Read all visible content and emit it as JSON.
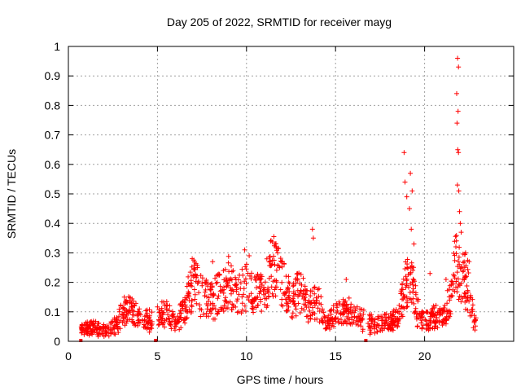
{
  "chart_data": {
    "type": "scatter",
    "title": "Day 205 of 2022, SRMTID for receiver mayg",
    "xlabel": "GPS time / hours",
    "ylabel": "SRMTID / TECUs",
    "xlim": [
      0,
      25
    ],
    "ylim": [
      0,
      1
    ],
    "x_ticks": [
      "0",
      "5",
      "10",
      "15",
      "20"
    ],
    "x_tick_values": [
      0,
      5,
      10,
      15,
      20
    ],
    "y_ticks": [
      "0",
      "0.1",
      "0.2",
      "0.3",
      "0.4",
      "0.5",
      "0.6",
      "0.7",
      "0.8",
      "0.9",
      "1"
    ],
    "y_tick_values": [
      0,
      0.1,
      0.2,
      0.3,
      0.4,
      0.5,
      0.6,
      0.7,
      0.8,
      0.9,
      1.0
    ],
    "grid": true,
    "marker": "+",
    "colors": {
      "series": "#ff0000",
      "grid": "#a0a0a0",
      "axis": "#000000"
    },
    "series": [
      {
        "name": "SRMTID",
        "profile": [
          [
            0.7,
            0.045
          ],
          [
            1.0,
            0.04
          ],
          [
            1.5,
            0.045
          ],
          [
            2.0,
            0.04
          ],
          [
            2.5,
            0.05
          ],
          [
            2.8,
            0.06
          ],
          [
            3.0,
            0.1
          ],
          [
            3.5,
            0.11
          ],
          [
            4.0,
            0.08
          ],
          [
            4.5,
            0.07
          ],
          [
            5.0,
            0.08
          ],
          [
            5.5,
            0.1
          ],
          [
            6.0,
            0.06
          ],
          [
            6.5,
            0.1
          ],
          [
            7.0,
            0.2
          ],
          [
            7.5,
            0.15
          ],
          [
            8.0,
            0.14
          ],
          [
            8.5,
            0.17
          ],
          [
            9.0,
            0.2
          ],
          [
            9.5,
            0.16
          ],
          [
            10.0,
            0.19
          ],
          [
            10.5,
            0.15
          ],
          [
            11.0,
            0.17
          ],
          [
            11.5,
            0.25
          ],
          [
            12.0,
            0.2
          ],
          [
            12.5,
            0.13
          ],
          [
            13.0,
            0.17
          ],
          [
            13.5,
            0.12
          ],
          [
            14.0,
            0.13
          ],
          [
            14.5,
            0.06
          ],
          [
            15.0,
            0.09
          ],
          [
            15.5,
            0.1
          ],
          [
            16.0,
            0.1
          ],
          [
            16.5,
            0.07
          ],
          [
            17.0,
            0.06
          ],
          [
            17.5,
            0.06
          ],
          [
            18.0,
            0.06
          ],
          [
            18.5,
            0.08
          ],
          [
            18.9,
            0.18
          ],
          [
            19.2,
            0.25
          ],
          [
            19.6,
            0.1
          ],
          [
            20.0,
            0.07
          ],
          [
            20.5,
            0.08
          ],
          [
            21.0,
            0.08
          ],
          [
            21.5,
            0.15
          ],
          [
            21.8,
            0.3
          ],
          [
            22.0,
            0.22
          ],
          [
            22.4,
            0.2
          ],
          [
            22.8,
            0.06
          ]
        ],
        "gaps": [
          [
            4.7,
            5.0
          ],
          [
            16.6,
            16.8
          ]
        ],
        "spikes": [
          [
            2.95,
            0.12
          ],
          [
            3.3,
            0.13
          ],
          [
            6.95,
            0.28
          ],
          [
            7.25,
            0.25
          ],
          [
            8.1,
            0.27
          ],
          [
            8.7,
            0.24
          ],
          [
            9.9,
            0.31
          ],
          [
            10.15,
            0.29
          ],
          [
            11.35,
            0.34
          ],
          [
            11.75,
            0.3
          ],
          [
            12.85,
            0.23
          ],
          [
            13.7,
            0.38
          ],
          [
            13.75,
            0.35
          ],
          [
            15.6,
            0.21
          ],
          [
            18.85,
            0.64
          ],
          [
            18.9,
            0.54
          ],
          [
            19.0,
            0.49
          ],
          [
            19.2,
            0.57
          ],
          [
            19.3,
            0.51
          ],
          [
            19.15,
            0.45
          ],
          [
            19.25,
            0.38
          ],
          [
            19.4,
            0.33
          ],
          [
            20.3,
            0.23
          ],
          [
            21.2,
            0.21
          ],
          [
            21.85,
            0.96
          ],
          [
            21.9,
            0.93
          ],
          [
            21.8,
            0.84
          ],
          [
            21.88,
            0.78
          ],
          [
            21.82,
            0.74
          ],
          [
            21.86,
            0.65
          ],
          [
            21.9,
            0.64
          ],
          [
            21.84,
            0.53
          ],
          [
            21.92,
            0.51
          ],
          [
            21.96,
            0.44
          ],
          [
            22.0,
            0.4
          ],
          [
            22.05,
            0.37
          ],
          [
            22.3,
            0.3
          ],
          [
            22.5,
            0.27
          ]
        ],
        "x_range": [
          0.7,
          22.9
        ],
        "num_points": 1400
      }
    ]
  }
}
